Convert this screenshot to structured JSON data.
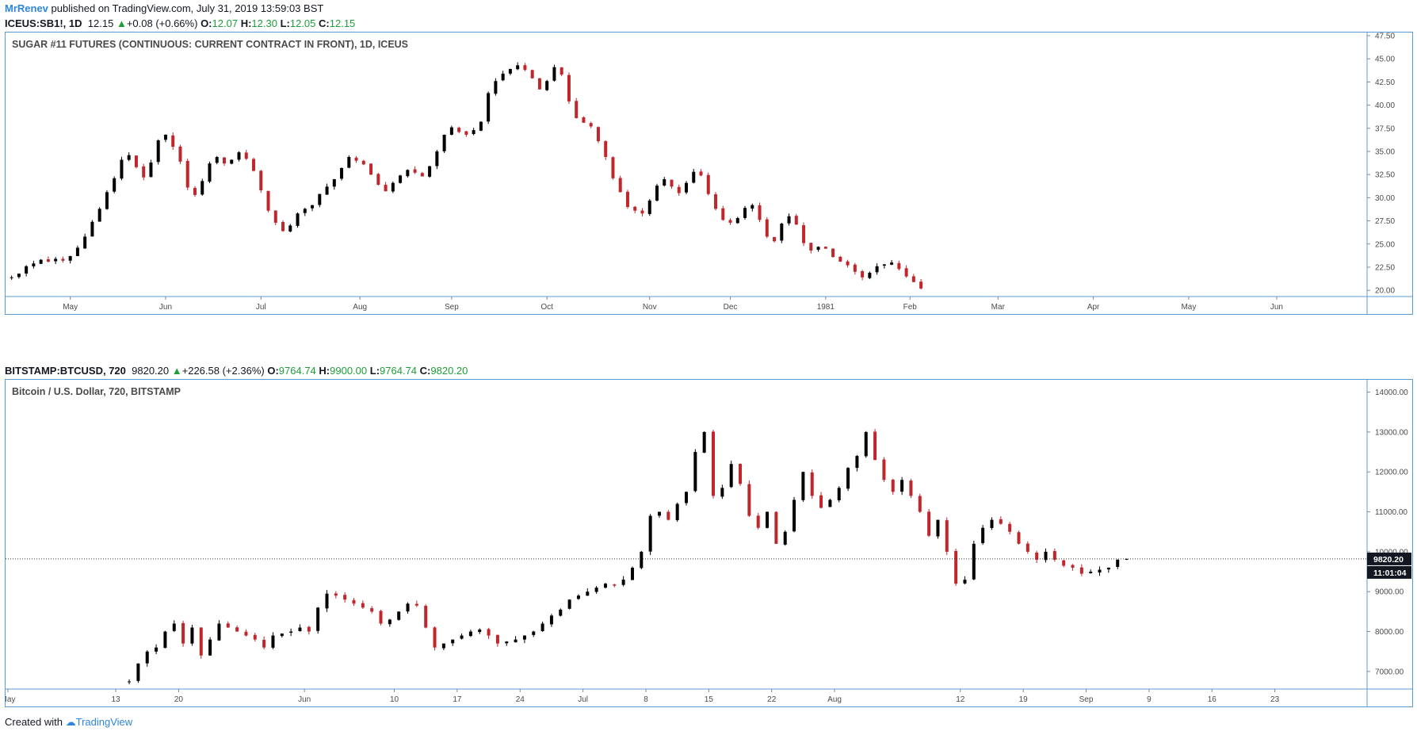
{
  "header": {
    "author": "MrRenev",
    "published": "published on TradingView.com, July 31, 2019 13:59:03 BST"
  },
  "sugar": {
    "symbol": "ICEUS:SB1!, 1D",
    "last": "12.15",
    "change": "+0.08 (+0.66%)",
    "o_label": "O:",
    "o": "12.07",
    "h_label": "H:",
    "h": "12.30",
    "l_label": "L:",
    "l": "12.05",
    "c_label": "C:",
    "c": "12.15",
    "title": "SUGAR #11 FUTURES (CONTINUOUS: CURRENT CONTRACT IN FRONT), 1D, ICEUS"
  },
  "btc": {
    "symbol": "BITSTAMP:BTCUSD, 720",
    "last": "9820.20",
    "change": "+226.58 (+2.36%)",
    "o_label": "O:",
    "o": "9764.74",
    "h_label": "H:",
    "h": "9900.00",
    "l_label": "L:",
    "l": "9764.74",
    "c_label": "C:",
    "c": "9820.20",
    "title": "Bitcoin / U.S. Dollar, 720, BITSTAMP",
    "price_label": "9820.20",
    "countdown": "11:01:04"
  },
  "footer": {
    "created": "Created with",
    "brand": "TradingView"
  },
  "colors": {
    "up": "#000000",
    "down": "#c0272d",
    "axis_border": "#5b9bd5",
    "text": "#4a4a4a"
  },
  "chart_data": [
    {
      "type": "candlestick",
      "title": "SUGAR #11 FUTURES (CONTINUOUS: CURRENT CONTRACT IN FRONT), 1D, ICEUS",
      "ylim": [
        19.5,
        47.5
      ],
      "y_ticks": [
        "20.00",
        "22.50",
        "25.00",
        "27.50",
        "30.00",
        "32.50",
        "35.00",
        "37.50",
        "40.00",
        "42.50",
        "45.00",
        "47.50"
      ],
      "x_ticks": [
        "May",
        "Jun",
        "Jul",
        "Aug",
        "Sep",
        "Oct",
        "Nov",
        "Dec",
        "1981",
        "Feb",
        "Mar",
        "Apr",
        "May",
        "Jun"
      ],
      "x_tick_index": [
        17,
        43,
        69,
        96,
        121,
        147,
        175,
        197,
        223,
        246,
        270,
        296,
        322,
        346
      ],
      "x_count": 370,
      "closes_step": 2,
      "closes": [
        21.4,
        21.8,
        22.6,
        22.9,
        23.3,
        23.1,
        23.4,
        23.2,
        23.7,
        24.6,
        25.8,
        27.4,
        28.8,
        30.6,
        32.1,
        34.1,
        34.6,
        33.3,
        32.2,
        33.8,
        36.2,
        36.8,
        35.5,
        33.9,
        31.1,
        30.3,
        31.8,
        33.7,
        34.4,
        33.7,
        34.1,
        34.9,
        34.2,
        32.9,
        30.8,
        28.6,
        27.3,
        26.4,
        27.0,
        28.3,
        28.8,
        29.2,
        30.4,
        31.2,
        32.0,
        33.2,
        34.4,
        34.0,
        33.6,
        32.5,
        31.4,
        30.7,
        31.6,
        32.4,
        33.0,
        32.7,
        32.3,
        33.4,
        35.0,
        36.8,
        37.6,
        37.1,
        36.8,
        37.3,
        38.2,
        41.3,
        42.6,
        43.4,
        43.9,
        44.3,
        43.8,
        42.9,
        41.7,
        42.6,
        44.1,
        43.3,
        40.4,
        38.6,
        38.1,
        37.7,
        36.1,
        34.4,
        32.1,
        30.6,
        29.0,
        28.6,
        28.3,
        29.7,
        31.3,
        32.0,
        31.2,
        30.5,
        31.6,
        32.8,
        32.4,
        30.4,
        28.8,
        27.6,
        27.3,
        27.8,
        28.9,
        29.2,
        27.6,
        25.8,
        25.3,
        27.2,
        28.0,
        27.1,
        25.1,
        24.3,
        24.7,
        24.5,
        23.6,
        23.1,
        22.7,
        22.0,
        21.4,
        21.9,
        22.6,
        22.8,
        23.0,
        22.3,
        21.5,
        20.9,
        20.2
      ]
    },
    {
      "type": "candlestick",
      "title": "Bitcoin / U.S. Dollar, 720, BITSTAMP",
      "ylim": [
        6600,
        14150
      ],
      "y_ticks": [
        "7000.00",
        "8000.00",
        "9000.00",
        "10000.00",
        "11000.00",
        "12000.00",
        "13000.00",
        "14000.00"
      ],
      "x_ticks": [
        "May",
        "13",
        "20",
        "Jun",
        "10",
        "17",
        "24",
        "Jul",
        "8",
        "15",
        "22",
        "Aug",
        "12",
        "19",
        "Sep",
        "9",
        "16",
        "23"
      ],
      "x_tick_index": [
        0,
        24,
        38,
        66,
        86,
        100,
        114,
        128,
        142,
        156,
        170,
        184,
        212,
        226,
        240,
        254,
        268,
        282
      ],
      "x_count": 302,
      "start_index": 26,
      "current_price": 9820.2,
      "closes": [
        6750,
        7200,
        7500,
        7600,
        8000,
        8200,
        7700,
        8100,
        7400,
        7800,
        8200,
        8100,
        8000,
        7900,
        7800,
        7600,
        7900,
        7950,
        8000,
        8100,
        8000,
        8600,
        8950,
        8900,
        8800,
        8700,
        8600,
        8500,
        8200,
        8300,
        8500,
        8700,
        8650,
        8100,
        7600,
        7700,
        7800,
        7900,
        8000,
        8050,
        7900,
        7700,
        7750,
        7800,
        7900,
        8000,
        8200,
        8400,
        8550,
        8800,
        8900,
        9000,
        9100,
        9200,
        9150,
        9300,
        9600,
        10000,
        10900,
        11000,
        10800,
        11200,
        11500,
        12500,
        13000,
        11400,
        11600,
        12200,
        11700,
        10900,
        10600,
        11000,
        10200,
        10500,
        11300,
        12000,
        11400,
        11100,
        11300,
        11600,
        12100,
        12400,
        13000,
        12300,
        11800,
        11500,
        11800,
        11400,
        11000,
        10400,
        10800,
        10000,
        9200,
        9300,
        10200,
        10600,
        10800,
        10700,
        10500,
        10200,
        10000,
        9800,
        10000,
        9800,
        9650,
        9600,
        9450,
        9500,
        9550,
        9600,
        9800,
        9820
      ]
    }
  ]
}
